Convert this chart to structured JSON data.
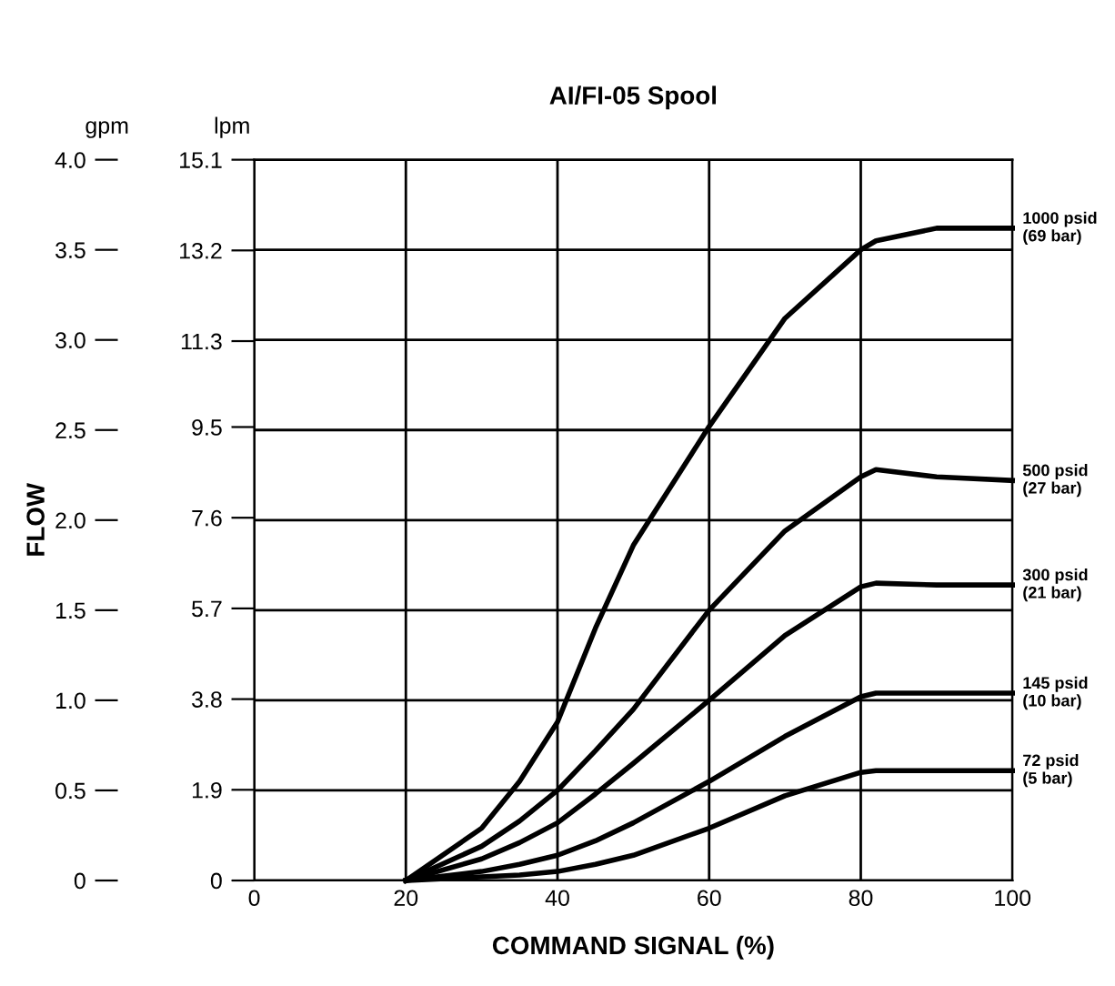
{
  "chart_data": {
    "type": "line",
    "title": "AI/FI-05 Spool",
    "xlabel": "COMMAND SIGNAL (%)",
    "ylabel": "FLOW",
    "annotations": [
      "gpm",
      "lpm"
    ],
    "x": [
      20,
      30,
      35,
      40,
      45,
      50,
      60,
      70,
      80,
      82,
      90,
      100
    ],
    "series": [
      {
        "name": "1000 psid\n(69 bar)",
        "color": "#000000",
        "values": [
          0,
          0.29,
          0.55,
          0.88,
          1.4,
          1.86,
          2.52,
          3.12,
          3.5,
          3.55,
          3.62,
          3.62
        ]
      },
      {
        "name": "500 psid\n(27 bar)",
        "color": "#000000",
        "values": [
          0,
          0.19,
          0.33,
          0.5,
          0.72,
          0.95,
          1.5,
          1.94,
          2.24,
          2.28,
          2.24,
          2.22
        ]
      },
      {
        "name": "300 psid\n(21 bar)",
        "color": "#000000",
        "values": [
          0,
          0.12,
          0.21,
          0.32,
          0.48,
          0.65,
          1.0,
          1.36,
          1.63,
          1.65,
          1.64,
          1.64
        ]
      },
      {
        "name": "145 psid\n(10 bar)",
        "color": "#000000",
        "values": [
          0,
          0.05,
          0.09,
          0.14,
          0.22,
          0.32,
          0.55,
          0.8,
          1.02,
          1.04,
          1.04,
          1.04
        ]
      },
      {
        "name": "72 psid\n(5 bar)",
        "color": "#000000",
        "values": [
          0,
          0.02,
          0.03,
          0.05,
          0.09,
          0.14,
          0.29,
          0.47,
          0.6,
          0.61,
          0.61,
          0.61
        ]
      }
    ],
    "xlim": [
      0,
      100
    ],
    "xticks": [
      0,
      20,
      40,
      60,
      80,
      100
    ],
    "ylim": [
      0,
      4.0
    ],
    "yticks": [
      {
        "value": 0,
        "label": "0"
      },
      0.5,
      {
        "value": 1,
        "label": "1.0"
      },
      1.5,
      {
        "value": 2,
        "label": "2.0"
      },
      2.5,
      {
        "value": 3,
        "label": "3.0"
      },
      3.5,
      {
        "value": 4,
        "label": "4.0"
      }
    ],
    "y2lim": [
      0,
      15.1
    ],
    "y2ticks": [
      0,
      1.9,
      3.8,
      5.7,
      7.6,
      9.5,
      11.3,
      13.2,
      15.1
    ],
    "grid": true,
    "line_style": "solid",
    "marker": "none",
    "legend": false
  }
}
